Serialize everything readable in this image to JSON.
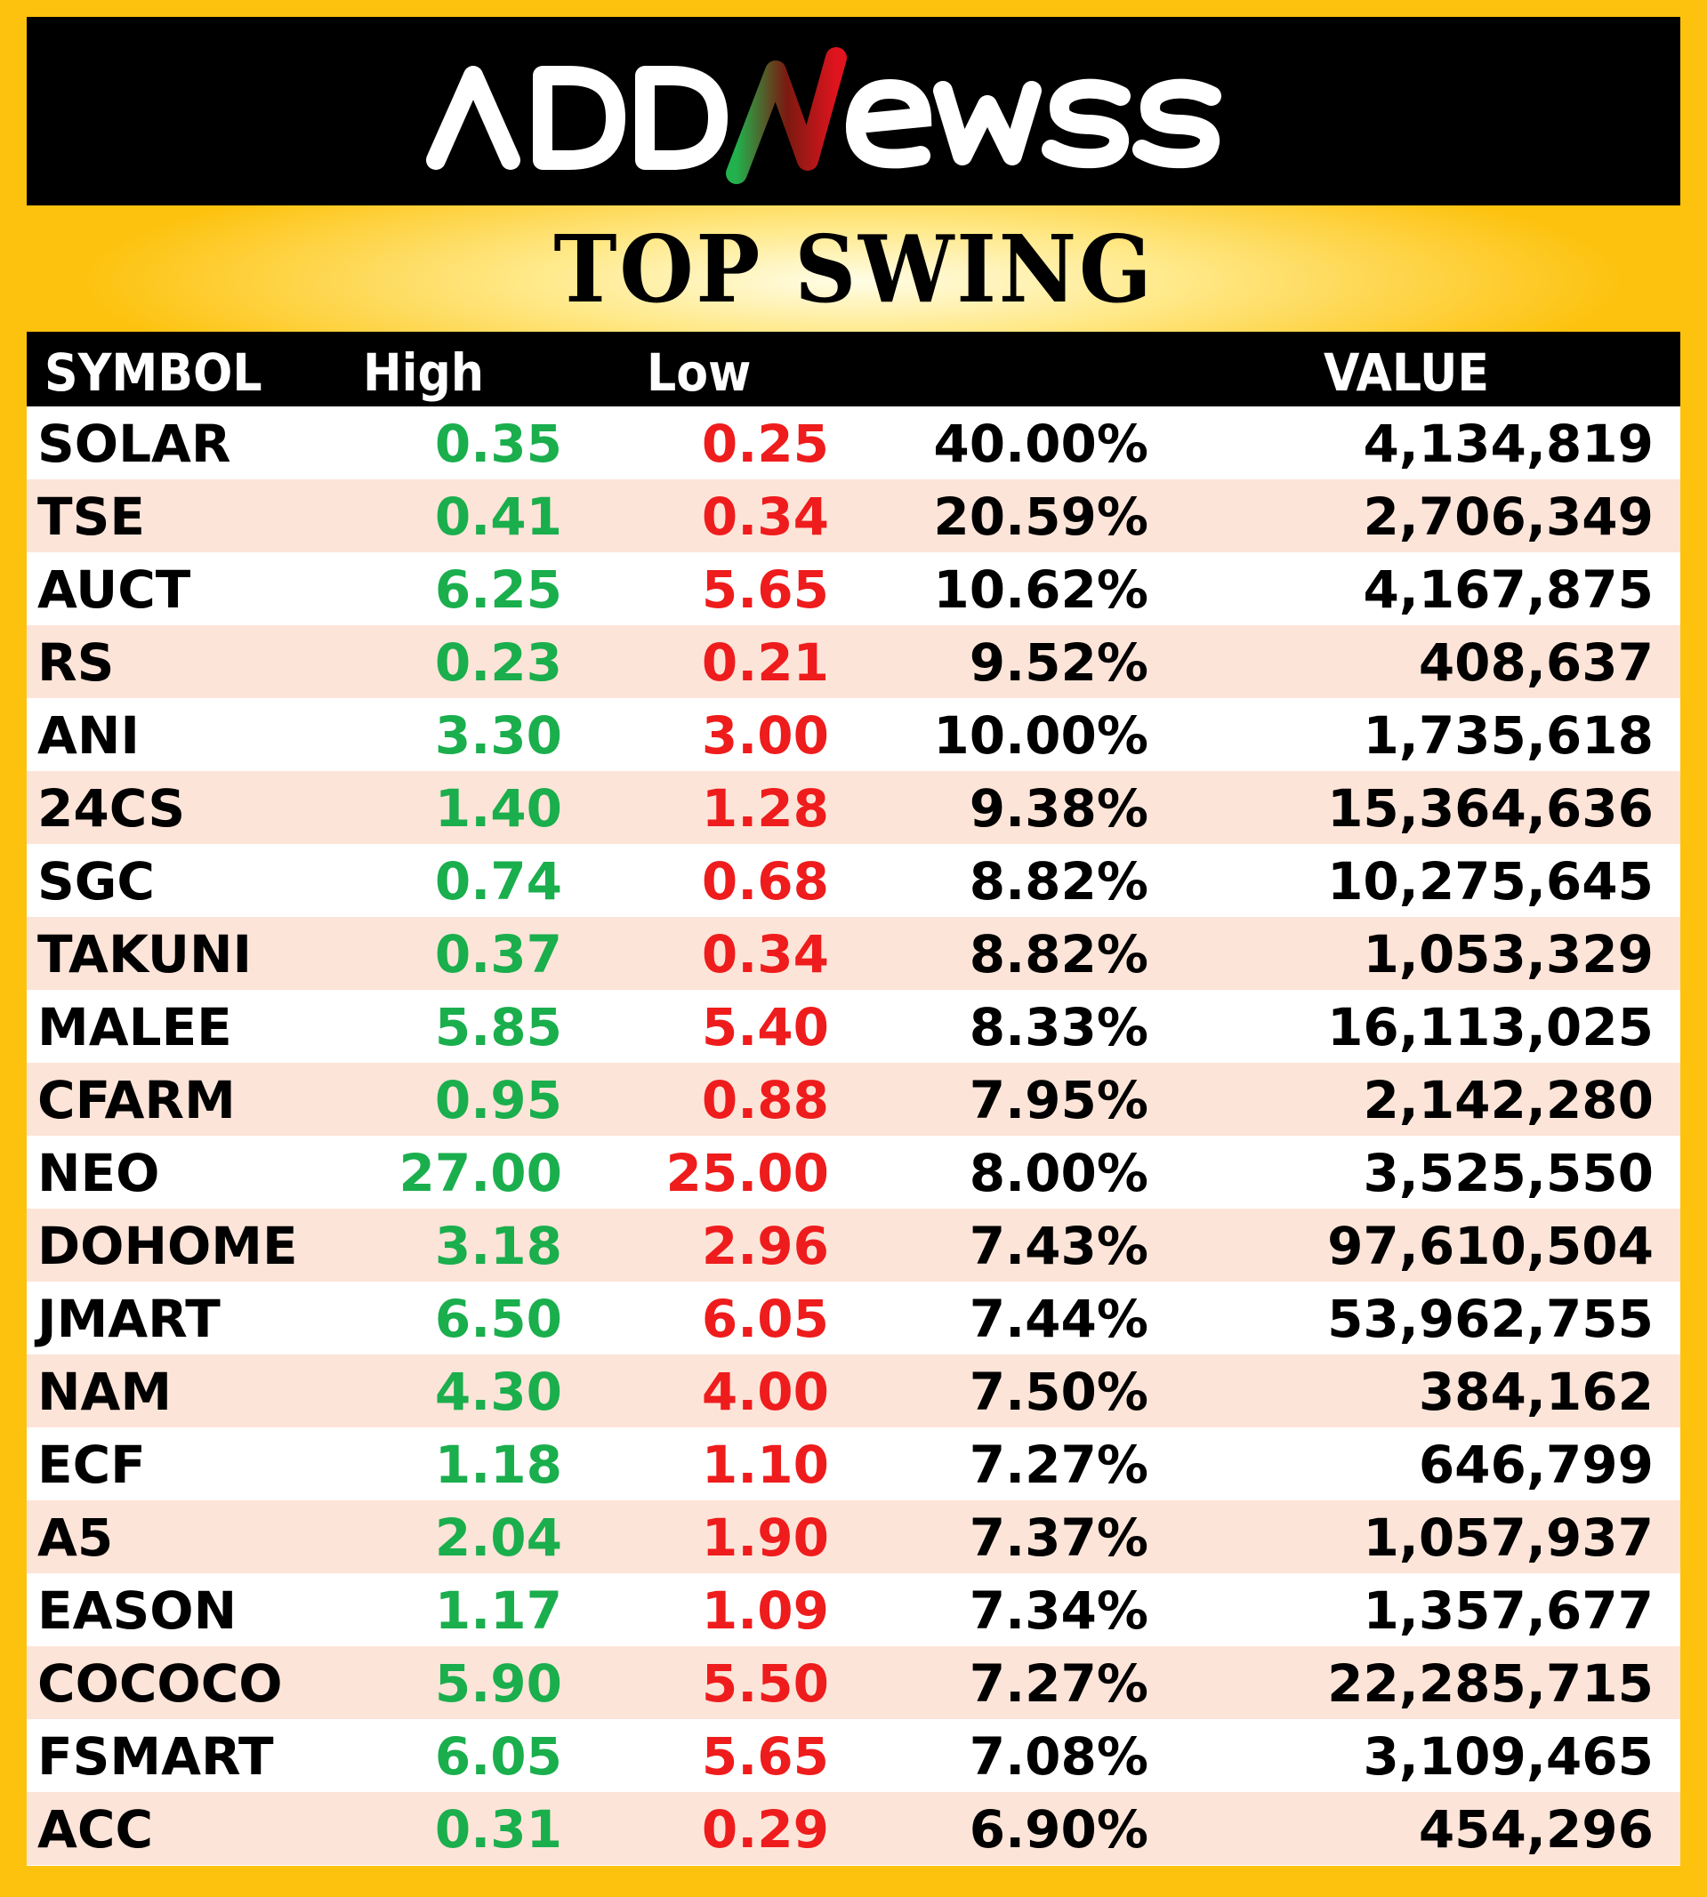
{
  "brand": {
    "logo_text": "ADDNewss"
  },
  "title": "TOP SWING",
  "columns": {
    "symbol": "SYMBOL",
    "high": "High",
    "low": "Low",
    "change": "",
    "value": "VALUE"
  },
  "colors": {
    "frame": "#FDC20E",
    "high": "#1AAE4D",
    "low": "#EE1C1C",
    "stripe": "#FDE4D8"
  },
  "rows": [
    {
      "symbol": "SOLAR",
      "high": "0.35",
      "low": "0.25",
      "change": "40.00%",
      "value": "4,134,819"
    },
    {
      "symbol": "TSE",
      "high": "0.41",
      "low": "0.34",
      "change": "20.59%",
      "value": "2,706,349"
    },
    {
      "symbol": "AUCT",
      "high": "6.25",
      "low": "5.65",
      "change": "10.62%",
      "value": "4,167,875"
    },
    {
      "symbol": "RS",
      "high": "0.23",
      "low": "0.21",
      "change": "9.52%",
      "value": "408,637"
    },
    {
      "symbol": "ANI",
      "high": "3.30",
      "low": "3.00",
      "change": "10.00%",
      "value": "1,735,618"
    },
    {
      "symbol": "24CS",
      "high": "1.40",
      "low": "1.28",
      "change": "9.38%",
      "value": "15,364,636"
    },
    {
      "symbol": "SGC",
      "high": "0.74",
      "low": "0.68",
      "change": "8.82%",
      "value": "10,275,645"
    },
    {
      "symbol": "TAKUNI",
      "high": "0.37",
      "low": "0.34",
      "change": "8.82%",
      "value": "1,053,329"
    },
    {
      "symbol": "MALEE",
      "high": "5.85",
      "low": "5.40",
      "change": "8.33%",
      "value": "16,113,025"
    },
    {
      "symbol": "CFARM",
      "high": "0.95",
      "low": "0.88",
      "change": "7.95%",
      "value": "2,142,280"
    },
    {
      "symbol": "NEO",
      "high": "27.00",
      "low": "25.00",
      "change": "8.00%",
      "value": "3,525,550"
    },
    {
      "symbol": "DOHOME",
      "high": "3.18",
      "low": "2.96",
      "change": "7.43%",
      "value": "97,610,504"
    },
    {
      "symbol": "JMART",
      "high": "6.50",
      "low": "6.05",
      "change": "7.44%",
      "value": "53,962,755"
    },
    {
      "symbol": "NAM",
      "high": "4.30",
      "low": "4.00",
      "change": "7.50%",
      "value": "384,162"
    },
    {
      "symbol": "ECF",
      "high": "1.18",
      "low": "1.10",
      "change": "7.27%",
      "value": "646,799"
    },
    {
      "symbol": "A5",
      "high": "2.04",
      "low": "1.90",
      "change": "7.37%",
      "value": "1,057,937"
    },
    {
      "symbol": "EASON",
      "high": "1.17",
      "low": "1.09",
      "change": "7.34%",
      "value": "1,357,677"
    },
    {
      "symbol": "COCOCO",
      "high": "5.90",
      "low": "5.50",
      "change": "7.27%",
      "value": "22,285,715"
    },
    {
      "symbol": "FSMART",
      "high": "6.05",
      "low": "5.65",
      "change": "7.08%",
      "value": "3,109,465"
    },
    {
      "symbol": "ACC",
      "high": "0.31",
      "low": "0.29",
      "change": "6.90%",
      "value": "454,296"
    }
  ]
}
